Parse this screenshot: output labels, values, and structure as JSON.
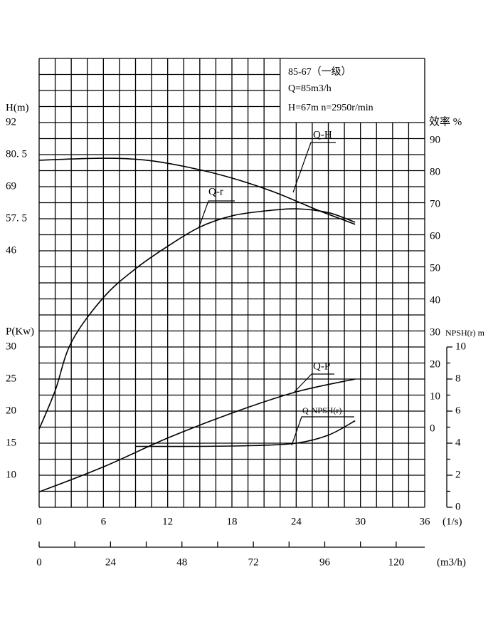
{
  "chart_data": {
    "type": "line",
    "info": [
      "85-67（一级）",
      "Q=85m3/h",
      "H=67m  n=2950r/min"
    ],
    "xlabel": "(1/s)",
    "x2label": "(m3/h)",
    "ylabel": "H(m)",
    "y2label": "P(Kw)",
    "y3label": "效率 %",
    "y4label": "NPSH(r) m",
    "xlim": [
      0,
      36
    ],
    "xticks": [
      0,
      6,
      12,
      18,
      24,
      30,
      36
    ],
    "x2lim": [
      0,
      129.6
    ],
    "x2ticks": [
      0,
      24,
      48,
      72,
      96,
      120
    ],
    "ylim": [
      -46,
      115
    ],
    "yticks": [
      {
        "value": 92,
        "label": "92"
      },
      {
        "value": 80.5,
        "label": "80. 5"
      },
      {
        "value": 69,
        "label": "69"
      },
      {
        "value": 57.5,
        "label": "57. 5"
      },
      {
        "value": 46,
        "label": "46"
      }
    ],
    "y2lim": [
      5,
      75
    ],
    "y2ticks": [
      30,
      25,
      20,
      15,
      10
    ],
    "y3lim": [
      -24.4,
      115.6
    ],
    "y3ticks": [
      90,
      80,
      70,
      60,
      50,
      40,
      30,
      20,
      10,
      0
    ],
    "y4lim": [
      0,
      28
    ],
    "y4ticks": [
      0,
      2,
      4,
      6,
      8,
      10
    ],
    "grid": true,
    "series": [
      {
        "name": "Q-H",
        "axis": "y",
        "color": "#000000",
        "x": [
          0,
          6,
          10,
          14,
          18,
          22,
          26,
          29.5
        ],
        "values": [
          78.5,
          79.2,
          78.5,
          75.9,
          72.1,
          67.0,
          60.6,
          55.5
        ]
      },
      {
        "name": "Q-r",
        "axis": "y3",
        "color": "#000000",
        "x": [
          0,
          1.5,
          3,
          6,
          9,
          12,
          15,
          18,
          21,
          24,
          27,
          29.5
        ],
        "values": [
          0,
          12,
          27,
          41,
          50,
          57,
          63,
          66.5,
          68,
          68.7,
          67.5,
          64.5
        ]
      },
      {
        "name": "Q-P",
        "axis": "y2",
        "color": "#000000",
        "x": [
          0,
          6,
          12,
          18,
          24,
          29.5
        ],
        "values": [
          7.4,
          11.3,
          15.8,
          19.7,
          23,
          25
        ]
      },
      {
        "name": "Q-NPSH(r)",
        "axis": "y4",
        "color": "#000000",
        "x": [
          9,
          15,
          20,
          24,
          27,
          29.5
        ],
        "values": [
          3.8,
          3.8,
          3.85,
          4.0,
          4.5,
          5.4
        ]
      }
    ]
  }
}
